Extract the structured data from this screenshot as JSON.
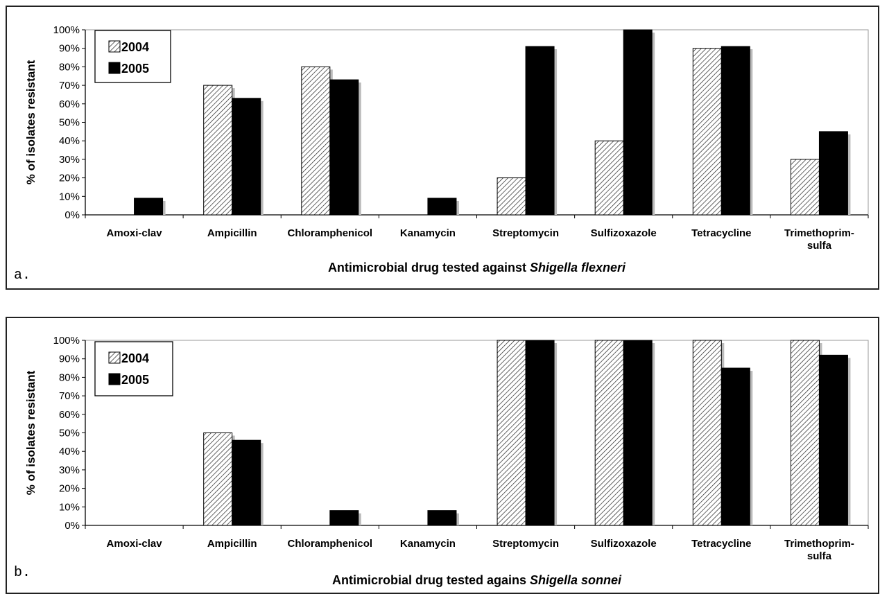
{
  "colors": {
    "bar_2004_fill": "#ffffff",
    "bar_2004_hatch": "#222222",
    "bar_2005_fill": "#000000",
    "shadow": "#bbbbbb",
    "axis": "#000000"
  },
  "chart_data": [
    {
      "type": "bar",
      "panel_label": "a.",
      "xlabel_prefix": "Antimicrobial drug tested against ",
      "xlabel_organism": "Shigella flexneri",
      "ylabel": "% of isolates resistant",
      "ylim": [
        0,
        100
      ],
      "yticks": [
        "0%",
        "10%",
        "20%",
        "30%",
        "40%",
        "50%",
        "60%",
        "70%",
        "80%",
        "90%",
        "100%"
      ],
      "categories": [
        "Amoxi-clav",
        "Ampicillin",
        "Chloramphenicol",
        "Kanamycin",
        "Streptomycin",
        "Sulfizoxazole",
        "Tetracycline",
        "Trimethoprim-|sulfa"
      ],
      "series": [
        {
          "name": "2004",
          "values": [
            0,
            70,
            80,
            0,
            20,
            40,
            90,
            30
          ]
        },
        {
          "name": "2005",
          "values": [
            9,
            63,
            73,
            9,
            91,
            100,
            91,
            45
          ]
        }
      ],
      "legend": "top-left",
      "grid": false
    },
    {
      "type": "bar",
      "panel_label": "b.",
      "xlabel_prefix": "Antimicrobial drug tested agains ",
      "xlabel_organism": "Shigella sonnei",
      "ylabel": "% of isolates resistant",
      "ylim": [
        0,
        100
      ],
      "yticks": [
        "0%",
        "10%",
        "20%",
        "30%",
        "40%",
        "50%",
        "60%",
        "70%",
        "80%",
        "90%",
        "100%"
      ],
      "categories": [
        "Amoxi-clav",
        "Ampicillin",
        "Chloramphenicol",
        "Kanamycin",
        "Streptomycin",
        "Sulfizoxazole",
        "Tetracycline",
        "Trimethoprim-|sulfa"
      ],
      "series": [
        {
          "name": "2004",
          "values": [
            0,
            50,
            0,
            0,
            100,
            100,
            100,
            100
          ]
        },
        {
          "name": "2005",
          "values": [
            0,
            46,
            8,
            8,
            100,
            100,
            85,
            92
          ]
        }
      ],
      "legend": "top-left",
      "grid": false
    }
  ]
}
